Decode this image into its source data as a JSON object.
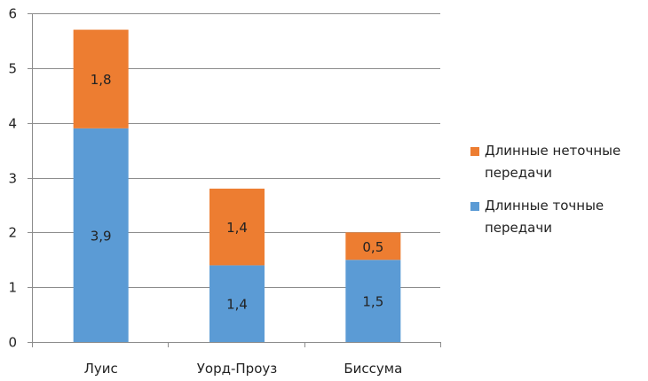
{
  "chart_data": {
    "type": "bar",
    "stacked": true,
    "categories": [
      "Луис",
      "Уорд-Проуз",
      "Биссума"
    ],
    "series": [
      {
        "name": "Длинные точные передачи",
        "name_lines": [
          "Длинные точные",
          "передачи"
        ],
        "values": [
          3.9,
          1.4,
          1.5
        ],
        "labels": [
          "3,9",
          "1,4",
          "1,5"
        ],
        "color": "#5b9bd5"
      },
      {
        "name": "Длинные неточные передачи",
        "name_lines": [
          "Длинные неточные",
          "передачи"
        ],
        "values": [
          1.8,
          1.4,
          0.5
        ],
        "labels": [
          "1,8",
          "1,4",
          "0,5"
        ],
        "color": "#ed7d31"
      }
    ],
    "ylim": [
      0,
      6
    ],
    "yticks": [
      0,
      1,
      2,
      3,
      4,
      5,
      6
    ],
    "grid": true,
    "legend_position": "right"
  }
}
